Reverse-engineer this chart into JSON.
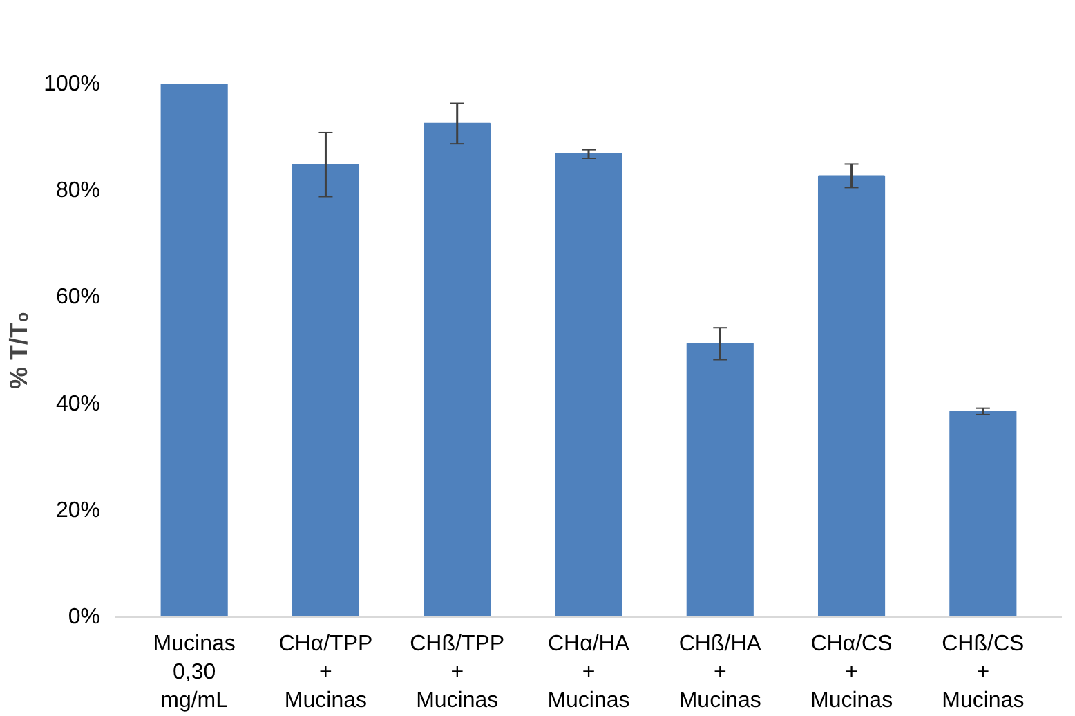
{
  "chart_data": {
    "type": "bar",
    "ylabel": "% T/T₀",
    "categories": [
      "Mucinas\n0,30\nmg/mL",
      "CHα/TPP\n+\nMucinas",
      "CHß/TPP\n+\nMucinas",
      "CHα/HA\n+\nMucinas",
      "CHß/HA\n+\nMucinas",
      "CHα/CS\n+\nMucinas",
      "CHß/CS\n+\nMucinas"
    ],
    "values": [
      100,
      84.9,
      92.6,
      86.9,
      51.3,
      82.8,
      38.6
    ],
    "errors": [
      null,
      6,
      3.8,
      0.8,
      3,
      2.2,
      0.6
    ],
    "color": "#4f81bd",
    "ylim": [
      0,
      100
    ],
    "yticks": [
      {
        "value": 0,
        "label": "0%"
      },
      {
        "value": 20,
        "label": "20%"
      },
      {
        "value": 40,
        "label": "40%"
      },
      {
        "value": 60,
        "label": "60%"
      },
      {
        "value": 80,
        "label": "80%"
      },
      {
        "value": 100,
        "label": "100%"
      }
    ],
    "grid": false
  }
}
